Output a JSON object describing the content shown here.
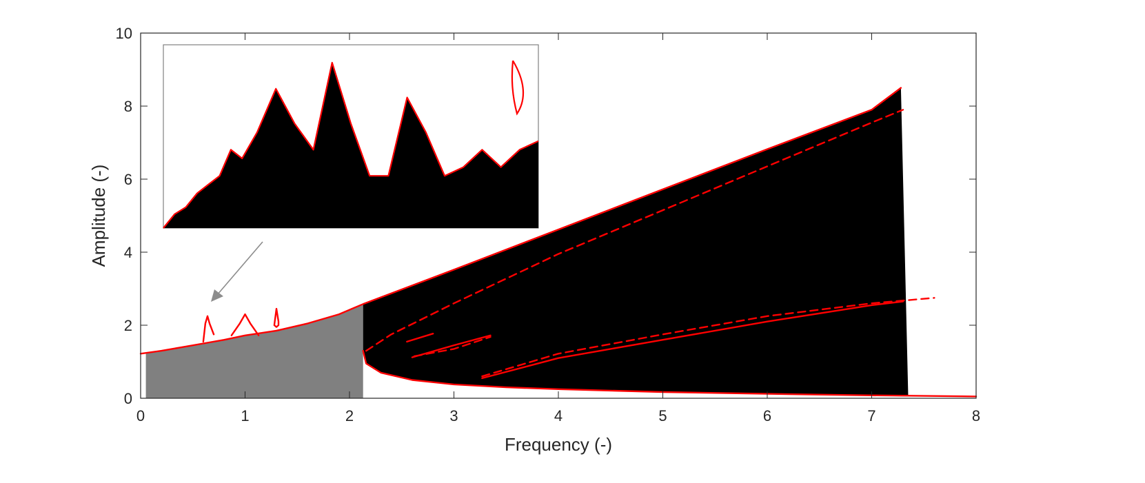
{
  "chart_data": {
    "type": "line",
    "title": "",
    "xlabel": "Frequency (-)",
    "ylabel": "Amplitude (-)",
    "xlim": [
      0,
      8
    ],
    "ylim": [
      0,
      10
    ],
    "xticks": [
      "0",
      "1",
      "2",
      "3",
      "4",
      "5",
      "6",
      "7",
      "8"
    ],
    "yticks": [
      "0",
      "2",
      "4",
      "6",
      "8",
      "10"
    ],
    "grid": false,
    "colors": {
      "curve": "#ff0000",
      "fill_gray": "#808080",
      "fill_black": "#000000",
      "axis": "#262626",
      "inset_frame": "#808080",
      "arrow": "#8c8c8c"
    },
    "series": [
      {
        "style": "solid",
        "x": [
          0.0,
          0.2,
          0.4,
          0.6,
          0.8,
          1.0,
          1.3,
          1.6,
          1.9,
          2.13,
          3.0,
          4.0,
          5.0,
          6.0,
          7.0,
          7.28
        ],
        "y": [
          1.22,
          1.3,
          1.4,
          1.5,
          1.6,
          1.72,
          1.85,
          2.05,
          2.3,
          2.58,
          3.52,
          4.62,
          5.72,
          6.82,
          7.9,
          8.5
        ]
      },
      {
        "style": "solid",
        "x": [
          2.13,
          2.16,
          2.3,
          2.6,
          3.0,
          3.5,
          4.0,
          5.0,
          6.0,
          7.0,
          8.0
        ],
        "y": [
          1.3,
          0.95,
          0.7,
          0.5,
          0.38,
          0.3,
          0.25,
          0.17,
          0.12,
          0.08,
          0.05
        ]
      },
      {
        "style": "dashed",
        "x": [
          2.16,
          2.4,
          3.0,
          4.0,
          5.0,
          6.0,
          7.0,
          7.3
        ],
        "y": [
          1.3,
          1.75,
          2.6,
          3.95,
          5.15,
          6.35,
          7.55,
          7.9
        ]
      },
      {
        "style": "solid",
        "x": [
          3.27,
          4.0,
          5.0,
          6.0,
          7.0,
          7.3
        ],
        "y": [
          0.55,
          1.1,
          1.6,
          2.1,
          2.55,
          2.65
        ]
      },
      {
        "style": "dashed",
        "x": [
          3.27,
          4.0,
          5.0,
          6.0,
          7.0,
          7.6
        ],
        "y": [
          0.6,
          1.22,
          1.75,
          2.25,
          2.6,
          2.75
        ]
      },
      {
        "style": "solid",
        "x": [
          2.6,
          3.0,
          3.35
        ],
        "y": [
          1.12,
          1.45,
          1.72
        ]
      },
      {
        "style": "dashed",
        "x": [
          2.62,
          3.0,
          3.35
        ],
        "y": [
          1.15,
          1.35,
          1.68
        ]
      },
      {
        "style": "solid",
        "x": [
          2.55,
          2.8
        ],
        "y": [
          1.55,
          1.77
        ]
      },
      {
        "style": "solid",
        "x": [
          1.28,
          1.3,
          1.32,
          1.32,
          1.3,
          1.28
        ],
        "y": [
          2.0,
          2.45,
          2.1,
          2.0,
          1.95,
          2.0
        ]
      },
      {
        "style": "solid",
        "x": [
          0.87,
          0.95,
          1.0,
          1.05,
          1.13
        ],
        "y": [
          1.72,
          2.05,
          2.3,
          2.05,
          1.72
        ]
      },
      {
        "style": "solid",
        "x": [
          0.6,
          0.62,
          0.64,
          0.66,
          0.7
        ],
        "y": [
          1.55,
          2.05,
          2.25,
          2.05,
          1.75
        ]
      }
    ],
    "fills": [
      {
        "color": "gray",
        "x": [
          0.05,
          0.05,
          0.2,
          0.4,
          0.6,
          0.8,
          1.0,
          1.3,
          1.6,
          1.9,
          2.13,
          2.13,
          0.05
        ],
        "y": [
          0.0,
          1.22,
          1.3,
          1.4,
          1.5,
          1.6,
          1.72,
          1.85,
          2.05,
          2.3,
          2.58,
          0.0,
          0.0
        ]
      },
      {
        "color": "black",
        "x": [
          2.13,
          3.0,
          4.0,
          5.0,
          6.0,
          7.0,
          7.28,
          7.35,
          7.35,
          6.0,
          5.0,
          4.0,
          3.0,
          2.6,
          2.3,
          2.16,
          2.13
        ],
        "y": [
          2.58,
          3.52,
          4.62,
          5.72,
          6.82,
          7.9,
          8.5,
          0.05,
          0.05,
          0.12,
          0.17,
          0.25,
          0.38,
          0.5,
          0.7,
          0.95,
          1.3
        ]
      }
    ],
    "inset": {
      "curve": {
        "x": [
          0.0,
          0.03,
          0.06,
          0.09,
          0.12,
          0.15,
          0.18,
          0.21,
          0.25,
          0.3,
          0.35,
          0.4,
          0.45,
          0.5,
          0.55,
          0.6,
          0.65,
          0.7,
          0.75,
          0.8,
          0.85,
          0.9,
          0.95,
          1.0
        ],
        "y": [
          0.0,
          0.08,
          0.12,
          0.2,
          0.25,
          0.3,
          0.45,
          0.4,
          0.55,
          0.8,
          0.6,
          0.45,
          0.95,
          0.6,
          0.3,
          0.3,
          0.75,
          0.55,
          0.3,
          0.35,
          0.45,
          0.35,
          0.45,
          0.5
        ]
      }
    }
  }
}
